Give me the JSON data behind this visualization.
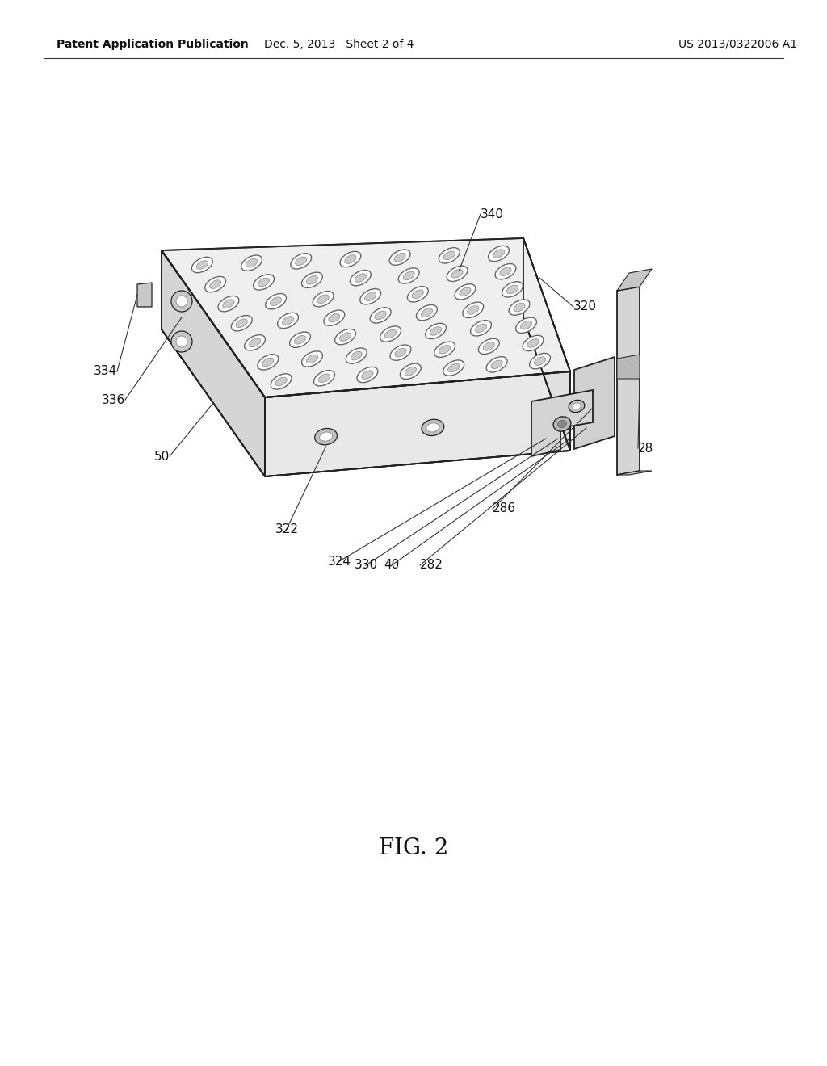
{
  "background_color": "#ffffff",
  "header_left": "Patent Application Publication",
  "header_mid": "Dec. 5, 2013   Sheet 2 of 4",
  "header_right": "US 2013/0322006 A1",
  "figure_label": "FIG. 2",
  "line_color": "#222222",
  "top_face_color": "#efefef",
  "left_face_color": "#d5d5d5",
  "front_face_color": "#e8e8e8",
  "bracket_color": "#d8d8d8",
  "dark_gray": "#aaaaaa",
  "hole_fill": "#ffffff",
  "hole_edge": "#555555",
  "hole_shadow": "#bbbbbb"
}
